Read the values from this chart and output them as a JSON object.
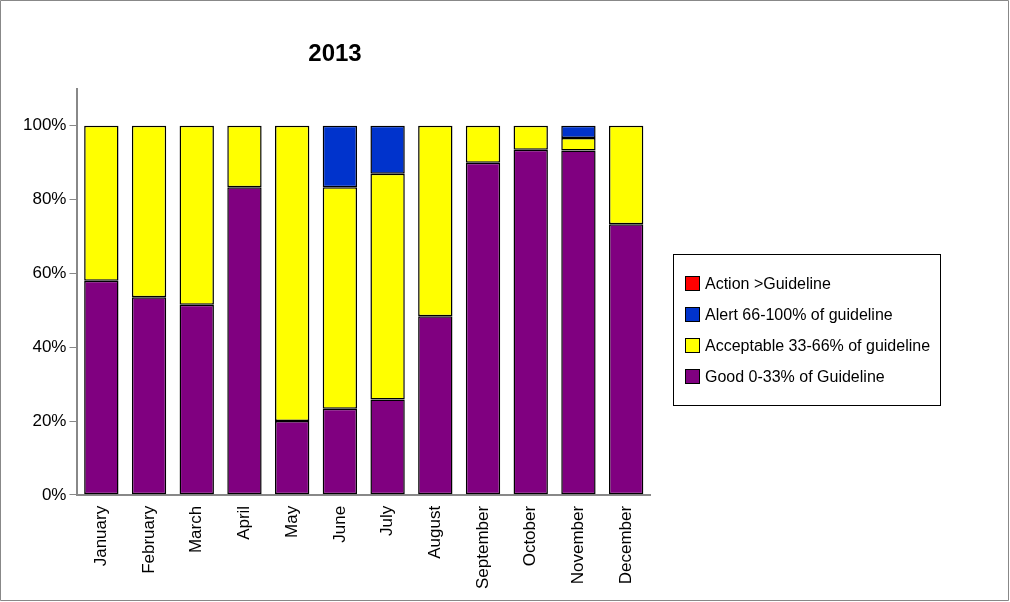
{
  "chart_data": {
    "type": "bar",
    "title": "2013",
    "stacked": true,
    "categories": [
      "January",
      "February",
      "March",
      "April",
      "May",
      "June",
      "July",
      "August",
      "September",
      "October",
      "November",
      "December"
    ],
    "series": [
      {
        "name": "Good 0-33% of Guideline",
        "color": "#800080",
        "values": [
          58,
          53.5,
          51.5,
          83.3,
          20,
          23.3,
          25.8,
          48.4,
          90,
          93.5,
          93.3,
          73.3
        ]
      },
      {
        "name": "Acceptable 33-66% of guideline",
        "color": "#ffff00",
        "values": [
          42,
          46.5,
          48.5,
          16.7,
          80,
          60,
          61.2,
          51.6,
          10,
          6.5,
          3.4,
          26.7
        ]
      },
      {
        "name": "Alert 66-100% of guideline",
        "color": "#0033cc",
        "values": [
          0,
          0,
          0,
          0,
          0,
          16.7,
          13,
          0,
          0,
          0,
          3.3,
          0
        ]
      },
      {
        "name": "Action >Guideline",
        "color": "#ff0000",
        "values": [
          0,
          0,
          0,
          0,
          0,
          0,
          0,
          0,
          0,
          0,
          0,
          0
        ]
      }
    ],
    "ylim": [
      0,
      110
    ],
    "yticks": [
      {
        "value": 0,
        "label": "0%"
      },
      {
        "value": 20,
        "label": "20%"
      },
      {
        "value": 40,
        "label": "40%"
      },
      {
        "value": 60,
        "label": "60%"
      },
      {
        "value": 80,
        "label": "80%"
      },
      {
        "value": 100,
        "label": "100%"
      }
    ],
    "grid": false,
    "legend": "right"
  }
}
